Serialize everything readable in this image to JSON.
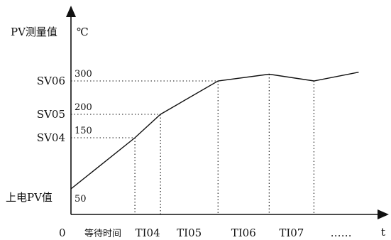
{
  "chart_data": {
    "type": "line",
    "ylabel": "PV测量值",
    "yunit": "℃",
    "xlabel": "t",
    "origin_label": "0",
    "start_label": "上电PV值",
    "x_labels": [
      "等待时间",
      "TI04",
      "TI05",
      "TI06",
      "TI07",
      "……"
    ],
    "setpoints": [
      {
        "name": "SV04",
        "value": 150
      },
      {
        "name": "SV05",
        "value": 200
      },
      {
        "name": "SV06",
        "value": 300
      }
    ],
    "start_value": 50,
    "points": [
      {
        "x": 0,
        "y": 50
      },
      {
        "x": 1,
        "y": 150
      },
      {
        "x": 1.4,
        "y": 200
      },
      {
        "x": 2.3,
        "y": 300
      },
      {
        "x": 3.1,
        "y": 310
      },
      {
        "x": 3.8,
        "y": 300
      },
      {
        "x": 4.5,
        "y": 313
      }
    ],
    "x_boundaries": [
      1,
      1.4,
      2.3,
      3.1,
      3.8
    ],
    "grid": false
  }
}
